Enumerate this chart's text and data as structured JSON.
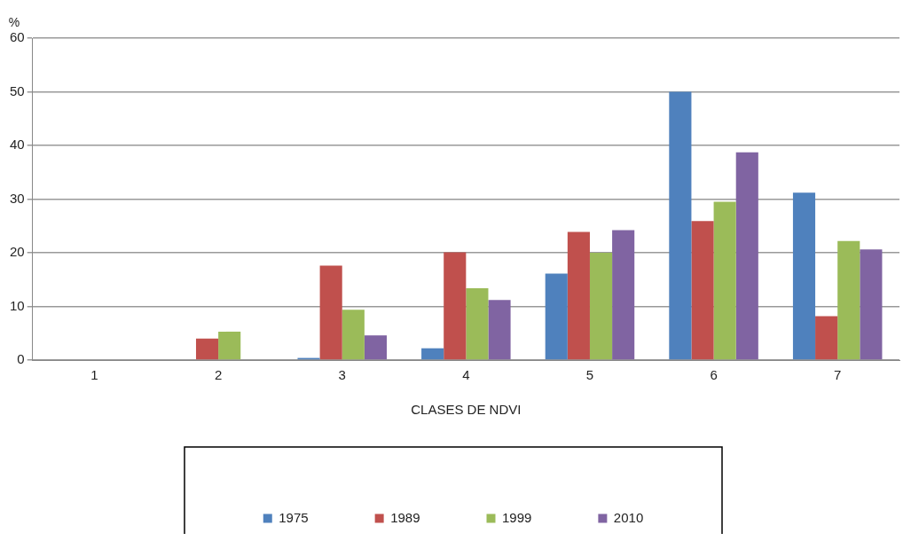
{
  "chart_data": {
    "type": "bar",
    "xlabel": "CLASES DE NDVI",
    "ylabel": "%",
    "categories": [
      "1",
      "2",
      "3",
      "4",
      "5",
      "6",
      "7"
    ],
    "series": [
      {
        "name": "1975",
        "color": "#4f81bd",
        "values": [
          0,
          0,
          0.4,
          2.2,
          16.1,
          50,
          31.2
        ]
      },
      {
        "name": "1989",
        "color": "#c0504d",
        "values": [
          0,
          4.0,
          17.6,
          20.1,
          23.9,
          25.9,
          8.2
        ]
      },
      {
        "name": "1999",
        "color": "#9bbb59",
        "values": [
          0,
          5.3,
          9.4,
          13.4,
          20.0,
          29.5,
          22.2
        ]
      },
      {
        "name": "2010",
        "color": "#8064a2",
        "values": [
          0,
          0,
          4.6,
          11.2,
          24.2,
          38.7,
          20.6
        ]
      }
    ],
    "ylim": [
      0,
      60
    ],
    "yticks": [
      0,
      10,
      20,
      30,
      40,
      50,
      60
    ],
    "grid": "y",
    "legend": "bottom"
  }
}
